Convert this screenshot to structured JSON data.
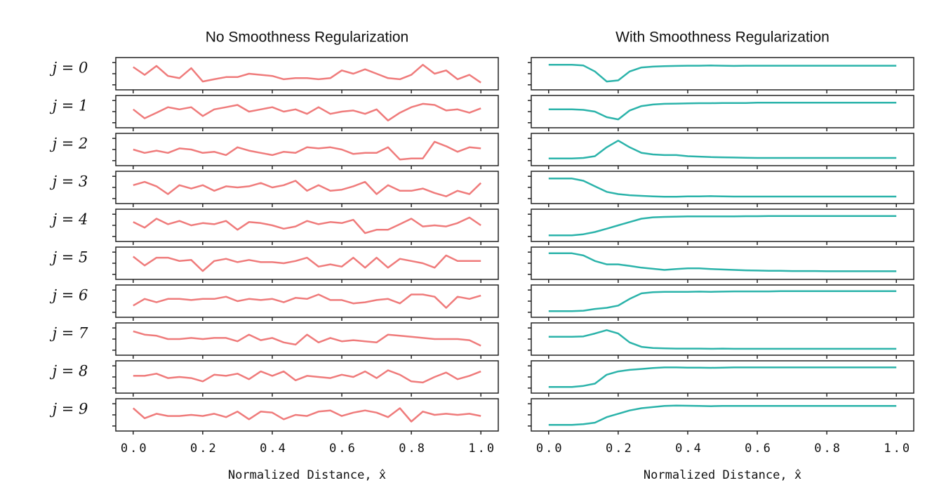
{
  "chart_data": [
    {
      "type": "line",
      "title": "No Smoothness Regularization",
      "xlabel": "Normalized Distance, x̂",
      "xlim": [
        -0.05,
        1.05
      ],
      "ylim": [
        -0.1,
        1.1
      ],
      "yticks": [
        0,
        0.5,
        1
      ],
      "xticks": [
        {
          "value": 0,
          "label": "0.0"
        },
        0.2,
        0.4,
        0.6,
        0.8,
        {
          "value": 1,
          "label": "1.0"
        }
      ],
      "x": [
        0,
        0.033,
        0.067,
        0.1,
        0.133,
        0.167,
        0.2,
        0.233,
        0.267,
        0.3,
        0.333,
        0.367,
        0.4,
        0.433,
        0.467,
        0.5,
        0.533,
        0.567,
        0.6,
        0.633,
        0.667,
        0.7,
        0.733,
        0.767,
        0.8,
        0.833,
        0.867,
        0.9,
        0.933,
        0.967,
        1
      ],
      "series": [
        {
          "name": "j = 0",
          "color": "#ef7b7b",
          "values": [
            0.8,
            0.45,
            0.85,
            0.4,
            0.3,
            0.75,
            0.15,
            0.25,
            0.35,
            0.35,
            0.5,
            0.45,
            0.4,
            0.25,
            0.3,
            0.3,
            0.25,
            0.3,
            0.65,
            0.5,
            0.7,
            0.5,
            0.3,
            0.25,
            0.45,
            0.9,
            0.5,
            0.65,
            0.25,
            0.45,
            0.1
          ]
        },
        {
          "name": "j = 1",
          "color": "#ef7b7b",
          "values": [
            0.6,
            0.2,
            0.45,
            0.7,
            0.6,
            0.7,
            0.3,
            0.6,
            0.7,
            0.8,
            0.5,
            0.6,
            0.7,
            0.5,
            0.6,
            0.4,
            0.7,
            0.4,
            0.5,
            0.55,
            0.4,
            0.6,
            0.1,
            0.45,
            0.7,
            0.85,
            0.8,
            0.55,
            0.6,
            0.45,
            0.65
          ]
        },
        {
          "name": "j = 2",
          "color": "#ef7b7b",
          "values": [
            0.5,
            0.35,
            0.45,
            0.35,
            0.55,
            0.5,
            0.35,
            0.4,
            0.25,
            0.6,
            0.45,
            0.35,
            0.25,
            0.4,
            0.35,
            0.6,
            0.55,
            0.6,
            0.5,
            0.3,
            0.35,
            0.35,
            0.6,
            0.05,
            0.1,
            0.1,
            0.85,
            0.65,
            0.4,
            0.6,
            0.55
          ]
        },
        {
          "name": "j = 3",
          "color": "#ef7b7b",
          "values": [
            0.6,
            0.75,
            0.55,
            0.2,
            0.6,
            0.45,
            0.6,
            0.35,
            0.55,
            0.5,
            0.55,
            0.7,
            0.5,
            0.6,
            0.8,
            0.35,
            0.6,
            0.35,
            0.4,
            0.55,
            0.75,
            0.2,
            0.6,
            0.35,
            0.35,
            0.45,
            0.25,
            0.1,
            0.35,
            0.2,
            0.7
          ]
        },
        {
          "name": "j = 4",
          "color": "#ef7b7b",
          "values": [
            0.65,
            0.4,
            0.8,
            0.55,
            0.7,
            0.5,
            0.6,
            0.55,
            0.7,
            0.3,
            0.65,
            0.6,
            0.5,
            0.35,
            0.45,
            0.7,
            0.55,
            0.65,
            0.6,
            0.75,
            0.15,
            0.3,
            0.3,
            0.55,
            0.8,
            0.45,
            0.5,
            0.45,
            0.6,
            0.85,
            0.5
          ]
        },
        {
          "name": "j = 5",
          "color": "#ef7b7b",
          "values": [
            0.8,
            0.4,
            0.75,
            0.75,
            0.6,
            0.65,
            0.15,
            0.6,
            0.7,
            0.55,
            0.65,
            0.55,
            0.55,
            0.5,
            0.6,
            0.75,
            0.35,
            0.45,
            0.35,
            0.75,
            0.3,
            0.75,
            0.3,
            0.7,
            0.6,
            0.5,
            0.3,
            0.85,
            0.6,
            0.6,
            0.6
          ]
        },
        {
          "name": "j = 6",
          "color": "#ef7b7b",
          "values": [
            0.3,
            0.6,
            0.45,
            0.6,
            0.6,
            0.55,
            0.6,
            0.6,
            0.7,
            0.5,
            0.6,
            0.55,
            0.6,
            0.45,
            0.65,
            0.6,
            0.8,
            0.55,
            0.55,
            0.4,
            0.45,
            0.55,
            0.6,
            0.4,
            0.8,
            0.8,
            0.7,
            0.2,
            0.7,
            0.6,
            0.75
          ]
        },
        {
          "name": "j = 7",
          "color": "#ef7b7b",
          "values": [
            0.85,
            0.7,
            0.65,
            0.5,
            0.5,
            0.55,
            0.5,
            0.55,
            0.55,
            0.4,
            0.7,
            0.45,
            0.55,
            0.35,
            0.25,
            0.7,
            0.35,
            0.55,
            0.4,
            0.45,
            0.4,
            0.35,
            0.7,
            0.65,
            0.6,
            0.55,
            0.5,
            0.5,
            0.5,
            0.45,
            0.2
          ]
        },
        {
          "name": "j = 8",
          "color": "#ef7b7b",
          "values": [
            0.55,
            0.55,
            0.65,
            0.45,
            0.5,
            0.45,
            0.3,
            0.6,
            0.55,
            0.65,
            0.4,
            0.75,
            0.55,
            0.75,
            0.35,
            0.55,
            0.5,
            0.45,
            0.6,
            0.5,
            0.75,
            0.45,
            0.8,
            0.6,
            0.3,
            0.25,
            0.5,
            0.7,
            0.4,
            0.55,
            0.75
          ]
        },
        {
          "name": "j = 9",
          "color": "#ef7b7b",
          "values": [
            0.8,
            0.35,
            0.55,
            0.45,
            0.45,
            0.5,
            0.45,
            0.55,
            0.4,
            0.65,
            0.3,
            0.65,
            0.6,
            0.3,
            0.5,
            0.45,
            0.65,
            0.7,
            0.45,
            0.6,
            0.7,
            0.6,
            0.4,
            0.8,
            0.2,
            0.65,
            0.5,
            0.55,
            0.5,
            0.55,
            0.45
          ]
        }
      ]
    },
    {
      "type": "line",
      "title": "With Smoothness Regularization",
      "xlabel": "Normalized Distance, x̂",
      "xlim": [
        -0.05,
        1.05
      ],
      "ylim": [
        -0.1,
        1.1
      ],
      "yticks": [
        0,
        0.5,
        1
      ],
      "xticks": [
        {
          "value": 0,
          "label": "0.0"
        },
        0.2,
        0.4,
        0.6,
        0.8,
        {
          "value": 1,
          "label": "1.0"
        }
      ],
      "x": [
        0,
        0.033,
        0.067,
        0.1,
        0.133,
        0.167,
        0.2,
        0.233,
        0.267,
        0.3,
        0.333,
        0.367,
        0.4,
        0.433,
        0.467,
        0.5,
        0.533,
        0.567,
        0.6,
        0.633,
        0.667,
        0.7,
        0.733,
        0.767,
        0.8,
        0.833,
        0.867,
        0.9,
        0.933,
        0.967,
        1
      ],
      "series": [
        {
          "color": "#2bb3aa",
          "values": [
            0.9,
            0.9,
            0.9,
            0.87,
            0.6,
            0.15,
            0.2,
            0.6,
            0.78,
            0.82,
            0.84,
            0.85,
            0.86,
            0.86,
            0.87,
            0.86,
            0.85,
            0.86,
            0.86,
            0.86,
            0.86,
            0.86,
            0.86,
            0.86,
            0.86,
            0.86,
            0.86,
            0.86,
            0.86,
            0.86,
            0.86
          ]
        },
        {
          "color": "#2bb3aa",
          "values": [
            0.6,
            0.6,
            0.6,
            0.58,
            0.5,
            0.25,
            0.15,
            0.55,
            0.75,
            0.82,
            0.85,
            0.86,
            0.87,
            0.88,
            0.88,
            0.89,
            0.89,
            0.89,
            0.9,
            0.9,
            0.9,
            0.9,
            0.9,
            0.9,
            0.9,
            0.9,
            0.9,
            0.9,
            0.9,
            0.9,
            0.9
          ]
        },
        {
          "color": "#2bb3aa",
          "values": [
            0.1,
            0.1,
            0.1,
            0.12,
            0.2,
            0.6,
            0.9,
            0.6,
            0.35,
            0.28,
            0.25,
            0.25,
            0.2,
            0.18,
            0.16,
            0.15,
            0.14,
            0.13,
            0.12,
            0.12,
            0.12,
            0.12,
            0.12,
            0.12,
            0.12,
            0.12,
            0.12,
            0.12,
            0.12,
            0.12,
            0.12
          ]
        },
        {
          "color": "#2bb3aa",
          "values": [
            0.9,
            0.9,
            0.9,
            0.8,
            0.55,
            0.3,
            0.2,
            0.15,
            0.12,
            0.1,
            0.08,
            0.08,
            0.1,
            0.1,
            0.11,
            0.1,
            0.09,
            0.09,
            0.09,
            0.09,
            0.09,
            0.09,
            0.09,
            0.09,
            0.09,
            0.09,
            0.09,
            0.09,
            0.09,
            0.09,
            0.09
          ]
        },
        {
          "color": "#2bb3aa",
          "values": [
            0.05,
            0.05,
            0.05,
            0.1,
            0.2,
            0.35,
            0.5,
            0.65,
            0.8,
            0.86,
            0.88,
            0.89,
            0.9,
            0.9,
            0.9,
            0.9,
            0.9,
            0.91,
            0.91,
            0.92,
            0.92,
            0.92,
            0.92,
            0.92,
            0.92,
            0.92,
            0.92,
            0.92,
            0.92,
            0.92,
            0.92
          ]
        },
        {
          "color": "#2bb3aa",
          "values": [
            0.95,
            0.95,
            0.95,
            0.85,
            0.6,
            0.45,
            0.45,
            0.38,
            0.3,
            0.25,
            0.2,
            0.24,
            0.27,
            0.27,
            0.24,
            0.22,
            0.2,
            0.18,
            0.17,
            0.16,
            0.16,
            0.15,
            0.15,
            0.15,
            0.14,
            0.14,
            0.14,
            0.14,
            0.14,
            0.14,
            0.14
          ]
        },
        {
          "color": "#2bb3aa",
          "values": [
            0.05,
            0.05,
            0.05,
            0.07,
            0.15,
            0.2,
            0.3,
            0.6,
            0.85,
            0.9,
            0.92,
            0.92,
            0.92,
            0.93,
            0.92,
            0.93,
            0.94,
            0.94,
            0.94,
            0.94,
            0.95,
            0.95,
            0.95,
            0.95,
            0.95,
            0.95,
            0.95,
            0.95,
            0.95,
            0.95,
            0.95
          ]
        },
        {
          "color": "#2bb3aa",
          "values": [
            0.6,
            0.6,
            0.6,
            0.62,
            0.75,
            0.9,
            0.75,
            0.35,
            0.15,
            0.1,
            0.08,
            0.07,
            0.07,
            0.07,
            0.06,
            0.07,
            0.06,
            0.06,
            0.06,
            0.06,
            0.06,
            0.06,
            0.06,
            0.06,
            0.06,
            0.06,
            0.06,
            0.06,
            0.06,
            0.06,
            0.06
          ]
        },
        {
          "color": "#2bb3aa",
          "values": [
            0.05,
            0.05,
            0.05,
            0.1,
            0.2,
            0.6,
            0.75,
            0.82,
            0.86,
            0.9,
            0.93,
            0.93,
            0.92,
            0.92,
            0.91,
            0.92,
            0.93,
            0.93,
            0.93,
            0.93,
            0.93,
            0.93,
            0.93,
            0.93,
            0.93,
            0.93,
            0.93,
            0.93,
            0.93,
            0.93,
            0.93
          ]
        },
        {
          "color": "#2bb3aa",
          "values": [
            0.05,
            0.05,
            0.05,
            0.08,
            0.15,
            0.4,
            0.55,
            0.7,
            0.8,
            0.85,
            0.9,
            0.92,
            0.91,
            0.9,
            0.89,
            0.9,
            0.9,
            0.9,
            0.9,
            0.9,
            0.9,
            0.9,
            0.9,
            0.9,
            0.9,
            0.9,
            0.9,
            0.9,
            0.9,
            0.9,
            0.9
          ]
        }
      ]
    }
  ]
}
